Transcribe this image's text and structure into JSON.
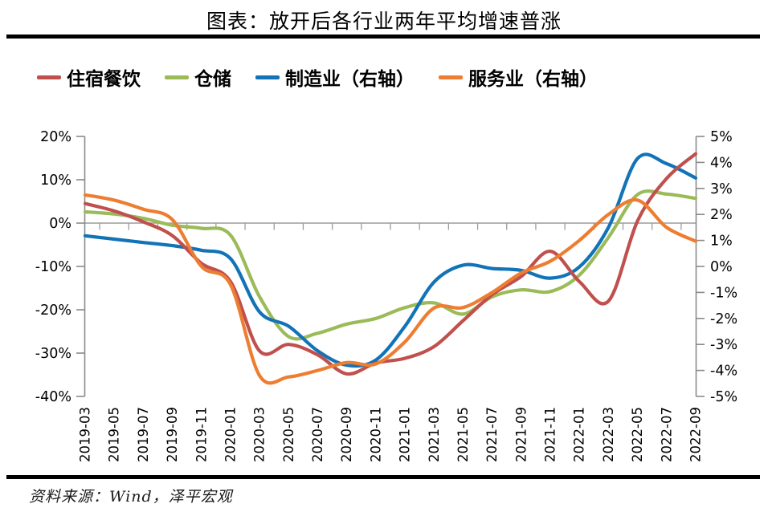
{
  "title": "图表：放开后各行业两年平均增速普涨",
  "source": "资料来源：Wind，泽平宏观",
  "colors": {
    "accommodation_catering": "#C0504D",
    "warehousing": "#9BBB59",
    "manufacturing": "#1273B7",
    "services": "#ED7D31",
    "axis_gray": "#8A8A8A",
    "zero_line_gray": "#9C9C9C",
    "text_black": "#000000"
  },
  "chart_data": {
    "type": "line",
    "smoothed": true,
    "legend_position": "top",
    "gridlines": "zero-line-only",
    "x_labels": [
      "2019-03",
      "2019-05",
      "2019-07",
      "2019-09",
      "2019-11",
      "2020-01",
      "2020-03",
      "2020-05",
      "2020-07",
      "2020-09",
      "2020-11",
      "2021-01",
      "2021-03",
      "2021-05",
      "2021-07",
      "2021-09",
      "2021-11",
      "2022-01",
      "2022-03",
      "2022-05",
      "2022-07",
      "2022-09"
    ],
    "left_axis": {
      "unit": "%",
      "min": -40,
      "max": 20,
      "ticks": [
        "20%",
        "10%",
        "0%",
        "-10%",
        "-20%",
        "-30%",
        "-40%"
      ]
    },
    "right_axis": {
      "unit": "%",
      "min": -5,
      "max": 5,
      "ticks": [
        "5%",
        "4%",
        "3%",
        "2%",
        "1%",
        "0%",
        "-1%",
        "-2%",
        "-3%",
        "-4%",
        "-5%"
      ]
    },
    "series": [
      {
        "name": "住宿餐饮",
        "key": "accommodation-catering",
        "axis": "left",
        "color": "#C0504D",
        "values": [
          4.5,
          2.8,
          0.3,
          -2.9,
          -9.3,
          -13.5,
          -29.5,
          -28.0,
          -30.4,
          -34.8,
          -32.3,
          -31.2,
          -28.5,
          -22.5,
          -16.5,
          -12.3,
          -6.5,
          -13.5,
          -18.0,
          0.5,
          10.3,
          16.0
        ]
      },
      {
        "name": "仓储",
        "key": "warehousing",
        "axis": "left",
        "color": "#9BBB59",
        "values": [
          2.6,
          2.1,
          1.1,
          -0.5,
          -1.2,
          -2.8,
          -17.0,
          -26.2,
          -25.4,
          -23.3,
          -22.0,
          -19.5,
          -18.4,
          -21.0,
          -17.0,
          -15.4,
          -15.8,
          -12.0,
          -3.3,
          6.6,
          6.7,
          5.7
        ]
      },
      {
        "name": "制造业（右轴）",
        "key": "manufacturing",
        "axis": "right",
        "color": "#1273B7",
        "values": [
          1.18,
          1.05,
          0.92,
          0.8,
          0.62,
          0.3,
          -1.75,
          -2.3,
          -3.25,
          -3.8,
          -3.6,
          -2.3,
          -0.6,
          0.05,
          -0.08,
          -0.15,
          -0.45,
          -0.02,
          1.5,
          4.15,
          3.95,
          3.4
        ]
      },
      {
        "name": "服务业（右轴）",
        "key": "services",
        "axis": "right",
        "color": "#ED7D31",
        "values": [
          2.75,
          2.55,
          2.2,
          1.8,
          0.0,
          -0.7,
          -4.2,
          -4.25,
          -4.0,
          -3.7,
          -3.75,
          -2.9,
          -1.6,
          -1.58,
          -1.0,
          -0.25,
          0.2,
          1.0,
          2.0,
          2.55,
          1.5,
          0.97
        ]
      }
    ]
  }
}
